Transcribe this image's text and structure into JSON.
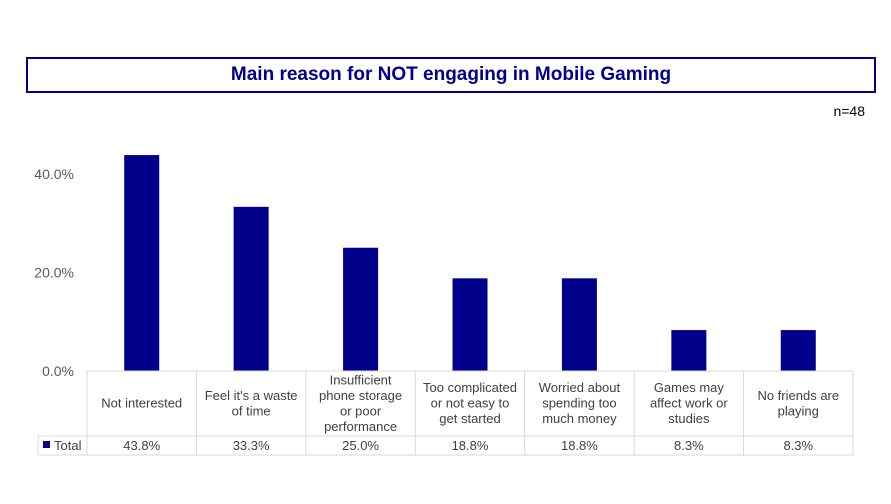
{
  "header": {
    "title": "Main reason for NOT engaging in Mobile Gaming",
    "sample": "n=48"
  },
  "colors": {
    "bar": "#00008B",
    "grid": "#d9d9d9"
  },
  "chart_data": {
    "type": "bar",
    "title": "Main reason for NOT engaging in Mobile Gaming",
    "categories": [
      [
        "Not interested"
      ],
      [
        "Feel it's a waste",
        "of time"
      ],
      [
        "Insufficient",
        "phone storage",
        "or poor",
        "performance"
      ],
      [
        "Too complicated",
        "or not easy to",
        "get started"
      ],
      [
        "Worried about",
        "spending too",
        "much money"
      ],
      [
        "Games may",
        "affect work or",
        "studies"
      ],
      [
        "No friends are",
        "playing"
      ]
    ],
    "series": [
      {
        "name": "Total",
        "values": [
          43.8,
          33.3,
          25.0,
          18.8,
          18.8,
          8.3,
          8.3
        ],
        "labels": [
          "43.8%",
          "33.3%",
          "25.0%",
          "18.8%",
          "18.8%",
          "8.3%",
          "8.3%"
        ]
      }
    ],
    "yticks": [
      "0.0%",
      "20.0%",
      "40.0%"
    ],
    "ylim": [
      0,
      45
    ],
    "legend": "bottom-left data table",
    "grid": false
  }
}
